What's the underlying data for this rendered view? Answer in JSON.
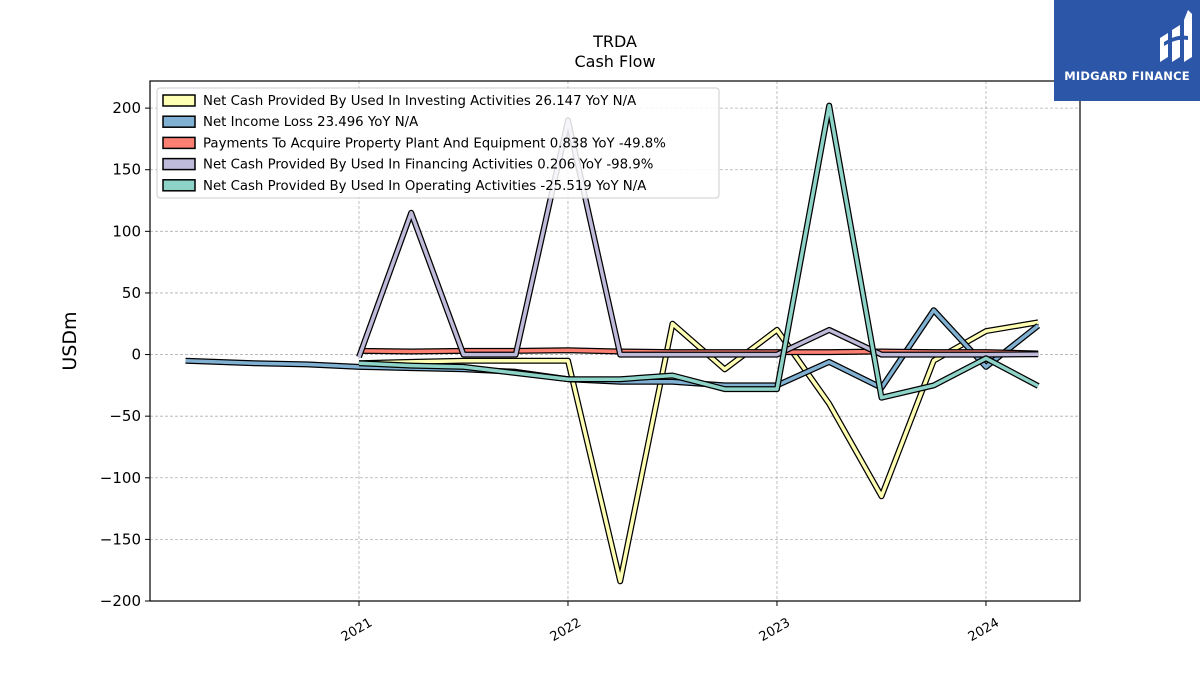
{
  "brand": {
    "name": "MIDGARD FINANCE",
    "color": "#2c56a8"
  },
  "chart_data": {
    "type": "line",
    "title": "TRDA",
    "subtitle": "Cash Flow",
    "ylabel": "USDm",
    "xlabel": "",
    "ylim": [
      -200,
      222
    ],
    "xlim": [
      2020.0,
      2024.45
    ],
    "yticks": [
      -200,
      -150,
      -100,
      -50,
      0,
      50,
      100,
      150,
      200
    ],
    "ytick_labels": [
      "−200",
      "−150",
      "−100",
      "−50",
      "0",
      "50",
      "100",
      "150",
      "200"
    ],
    "xticks": [
      2021,
      2022,
      2023,
      2024
    ],
    "xtick_labels": [
      "2021",
      "2022",
      "2023",
      "2024"
    ],
    "grid": true,
    "legend_position": "top-left",
    "series": [
      {
        "name": "Net Cash Provided By Used In Investing Activities",
        "legend_label": "Net Cash Provided By Used In Investing Activities  26.147 YoY N/A",
        "color": "#ffffb3",
        "x": [
          2021.0,
          2021.25,
          2021.5,
          2021.75,
          2022.0,
          2022.25,
          2022.5,
          2022.75,
          2023.0,
          2023.25,
          2023.5,
          2023.75,
          2024.0,
          2024.25
        ],
        "values": [
          -7.0,
          -6.0,
          -5.0,
          -5.0,
          -5.0,
          -184.0,
          25.0,
          -12.0,
          20.0,
          -40.0,
          -115.0,
          -5.0,
          19.0,
          26.147
        ]
      },
      {
        "name": "Net Income Loss",
        "legend_label": "Net Income Loss  23.496 YoY N/A",
        "color": "#80b1d3",
        "x": [
          2020.17,
          2020.5,
          2020.75,
          2021.0,
          2021.25,
          2021.5,
          2021.75,
          2022.0,
          2022.25,
          2022.5,
          2022.75,
          2023.0,
          2023.25,
          2023.5,
          2023.75,
          2024.0,
          2024.25
        ],
        "values": [
          -5.0,
          -7.0,
          -8.0,
          -10.0,
          -11.0,
          -12.0,
          -14.0,
          -20.0,
          -22.0,
          -22.0,
          -25.0,
          -25.0,
          -6.0,
          -27.0,
          36.0,
          -10.0,
          23.496
        ]
      },
      {
        "name": "Payments To Acquire Property Plant And Equipment",
        "legend_label": "Payments To Acquire Property Plant And Equipment  0.838 YoY -49.8%",
        "color": "#fb8072",
        "x": [
          2021.0,
          2021.25,
          2021.5,
          2021.75,
          2022.0,
          2022.25,
          2022.5,
          2022.75,
          2023.0,
          2023.25,
          2023.5,
          2023.75,
          2024.0,
          2024.25
        ],
        "values": [
          3.0,
          2.5,
          3.0,
          3.0,
          3.5,
          2.5,
          2.0,
          2.0,
          2.0,
          2.0,
          2.5,
          2.0,
          2.0,
          0.838
        ]
      },
      {
        "name": "Net Cash Provided By Used In Financing Activities",
        "legend_label": "Net Cash Provided By Used In Financing Activities  0.206 YoY -98.9%",
        "color": "#bebada",
        "x": [
          2021.0,
          2021.25,
          2021.5,
          2021.75,
          2022.0,
          2022.25,
          2022.5,
          2022.75,
          2023.0,
          2023.25,
          2023.5,
          2023.75,
          2024.0,
          2024.25
        ],
        "values": [
          -2.0,
          115.0,
          0.0,
          0.0,
          190.0,
          0.0,
          0.0,
          0.0,
          0.0,
          20.0,
          0.0,
          0.0,
          0.0,
          0.206
        ]
      },
      {
        "name": "Net Cash Provided By Used In Operating Activities",
        "legend_label": "Net Cash Provided By Used In Operating Activities  -25.519 YoY N/A",
        "color": "#8dd3c7",
        "x": [
          2021.0,
          2021.25,
          2021.5,
          2021.75,
          2022.0,
          2022.25,
          2022.5,
          2022.75,
          2023.0,
          2023.25,
          2023.5,
          2023.75,
          2024.0,
          2024.25
        ],
        "values": [
          -7.0,
          -9.0,
          -10.0,
          -15.0,
          -20.0,
          -20.0,
          -17.0,
          -28.0,
          -28.0,
          202.0,
          -35.0,
          -25.0,
          -3.0,
          -25.519
        ]
      }
    ]
  }
}
